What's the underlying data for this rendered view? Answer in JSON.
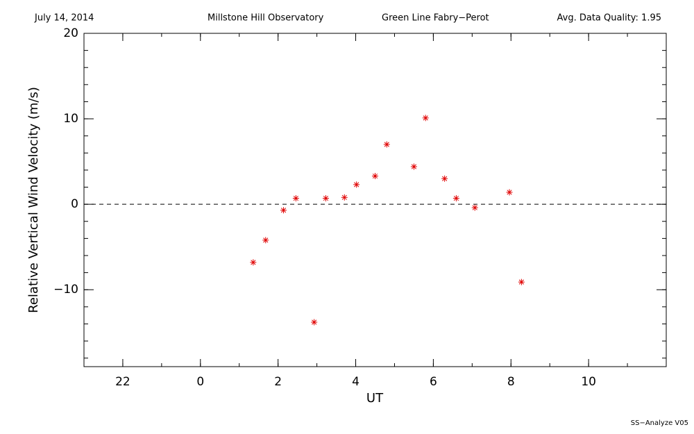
{
  "chart_data": {
    "type": "scatter",
    "header": [
      "July 14, 2014",
      "Millstone Hill Observatory",
      "Green Line Fabry−Perot",
      "Avg. Data Quality: 1.95"
    ],
    "footer": "SS−Analyze V05",
    "x_label": "UT",
    "y_label": "Relative Vertical Wind Velocity (m/s)",
    "xlim": [
      -3,
      12
    ],
    "xticks": [
      {
        "value": -2,
        "label": "22"
      },
      0,
      2,
      4,
      6,
      8,
      10
    ],
    "xminor_step": 1,
    "ylim": [
      -19,
      20
    ],
    "yticks": [
      {
        "value": -10,
        "label": "−10"
      },
      0,
      10,
      20
    ],
    "yminor_step": 2,
    "reference_line": 0,
    "series": [
      {
        "color": "#e00000",
        "x": [
          1.36,
          1.68,
          2.14,
          2.46,
          2.93,
          3.23,
          3.71,
          4.02,
          4.5,
          4.8,
          5.5,
          5.8,
          6.29,
          6.59,
          7.07,
          7.96,
          8.27
        ],
        "values": [
          -6.8,
          -4.2,
          -0.7,
          0.7,
          -13.8,
          0.7,
          0.8,
          2.3,
          3.3,
          7.0,
          4.4,
          10.1,
          3.0,
          0.7,
          -0.4,
          1.4,
          -9.1
        ]
      }
    ]
  }
}
